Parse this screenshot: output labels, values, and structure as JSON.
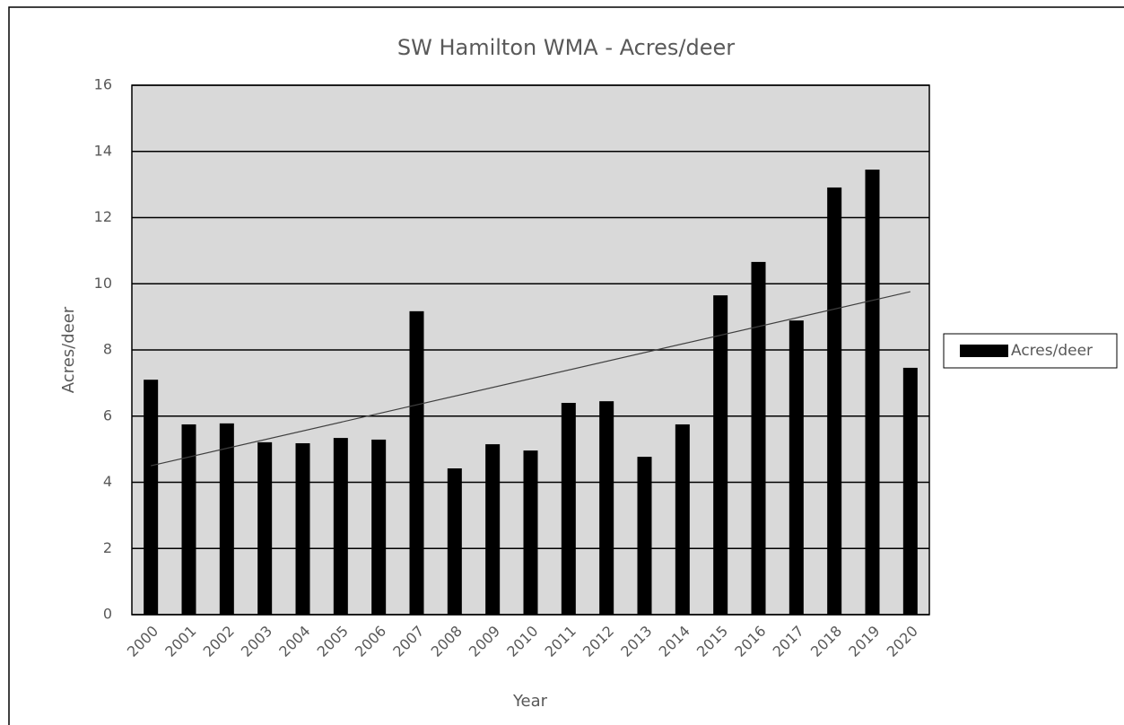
{
  "chart_data": {
    "type": "bar",
    "title": "SW Hamilton WMA - Acres/deer",
    "x_label": "Year",
    "y_label": "Acres/deer",
    "categories": [
      "2000",
      "2001",
      "2002",
      "2003",
      "2004",
      "2005",
      "2006",
      "2007",
      "2008",
      "2009",
      "2010",
      "2011",
      "2012",
      "2013",
      "2014",
      "2015",
      "2016",
      "2017",
      "2018",
      "2019",
      "2020"
    ],
    "series": [
      {
        "name": "Acres/deer",
        "color": "#000000",
        "values": [
          7.1,
          5.75,
          5.78,
          5.21,
          5.18,
          5.34,
          5.29,
          9.17,
          4.42,
          5.15,
          4.96,
          6.4,
          6.45,
          4.77,
          5.75,
          9.65,
          10.66,
          8.89,
          12.91,
          13.45,
          7.46
        ]
      }
    ],
    "trendline": {
      "values": [
        4.5,
        9.76
      ],
      "color": "#404040"
    },
    "ylim": [
      0,
      16
    ],
    "yticks": [
      0,
      2,
      4,
      6,
      8,
      10,
      12,
      14,
      16
    ],
    "grid": true,
    "legend": "right"
  }
}
